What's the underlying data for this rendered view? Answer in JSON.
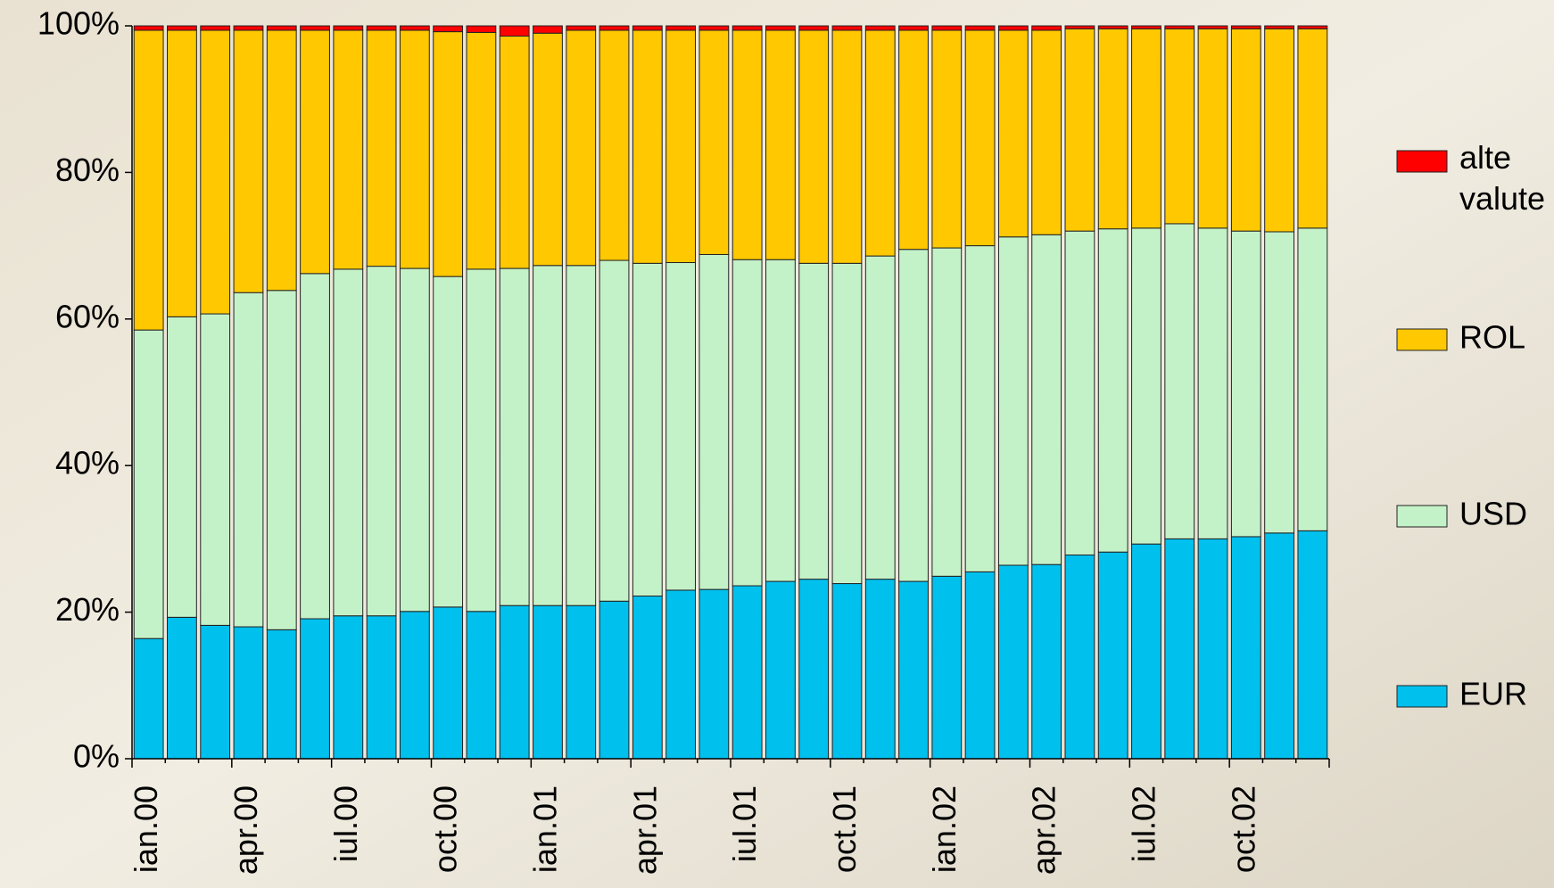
{
  "chart_data": {
    "type": "stacked_bar",
    "categories": [
      "ian.00",
      null,
      null,
      "apr.00",
      null,
      null,
      "iul.00",
      null,
      null,
      "oct.00",
      null,
      null,
      "ian.01",
      null,
      null,
      "apr.01",
      null,
      null,
      "iul.01",
      null,
      null,
      "oct.01",
      null,
      null,
      "ian.02",
      null,
      null,
      "apr.02",
      null,
      null,
      "iul.02",
      null,
      null,
      "oct.02",
      null,
      null
    ],
    "series": [
      {
        "name": "EUR",
        "color": "#00c0ee",
        "values": [
          16.4,
          19.3,
          18.2,
          18.0,
          17.6,
          19.1,
          19.5,
          19.5,
          20.1,
          20.7,
          20.1,
          20.9,
          20.9,
          20.9,
          21.5,
          22.2,
          23.0,
          23.1,
          23.6,
          24.2,
          24.5,
          23.9,
          24.5,
          24.2,
          24.9,
          25.5,
          26.4,
          26.5,
          27.8,
          28.2,
          29.3,
          30.0,
          30.0,
          30.3,
          30.8,
          31.1
        ]
      },
      {
        "name": "USD",
        "color": "#c4f2c8",
        "values": [
          42.1,
          41.0,
          42.5,
          45.6,
          46.3,
          47.1,
          47.3,
          47.7,
          46.8,
          45.1,
          46.7,
          46.0,
          46.4,
          46.4,
          46.5,
          45.4,
          44.7,
          45.7,
          44.5,
          43.9,
          43.1,
          43.7,
          44.1,
          45.3,
          44.8,
          44.5,
          44.8,
          45.0,
          44.2,
          44.1,
          43.1,
          43.0,
          42.4,
          41.7,
          41.1,
          41.3
        ]
      },
      {
        "name": "ROL",
        "color": "#ffc800",
        "values": [
          40.9,
          39.1,
          38.7,
          35.8,
          35.5,
          33.2,
          32.6,
          32.2,
          32.5,
          33.4,
          32.3,
          31.7,
          31.7,
          32.1,
          31.4,
          31.8,
          31.7,
          30.6,
          31.3,
          31.3,
          31.8,
          31.8,
          30.8,
          29.9,
          29.7,
          29.4,
          28.2,
          27.9,
          27.6,
          27.3,
          27.2,
          26.6,
          27.2,
          27.6,
          27.7,
          27.2
        ]
      },
      {
        "name": "alte valute",
        "color": "#ff0000",
        "values": [
          0.6,
          0.6,
          0.6,
          0.6,
          0.6,
          0.6,
          0.6,
          0.6,
          0.6,
          0.8,
          0.9,
          1.4,
          1.0,
          0.6,
          0.6,
          0.6,
          0.6,
          0.6,
          0.6,
          0.6,
          0.6,
          0.6,
          0.6,
          0.6,
          0.6,
          0.6,
          0.6,
          0.6,
          0.4,
          0.4,
          0.4,
          0.4,
          0.4,
          0.4,
          0.4,
          0.4
        ]
      }
    ],
    "ylim": [
      0,
      100
    ],
    "yticks": [
      {
        "value": 0,
        "label": "0%"
      },
      {
        "value": 20,
        "label": "20%"
      },
      {
        "value": 40,
        "label": "40%"
      },
      {
        "value": 60,
        "label": "60%"
      },
      {
        "value": 80,
        "label": "80%"
      },
      {
        "value": 100,
        "label": "100%"
      }
    ],
    "legend": "right"
  }
}
